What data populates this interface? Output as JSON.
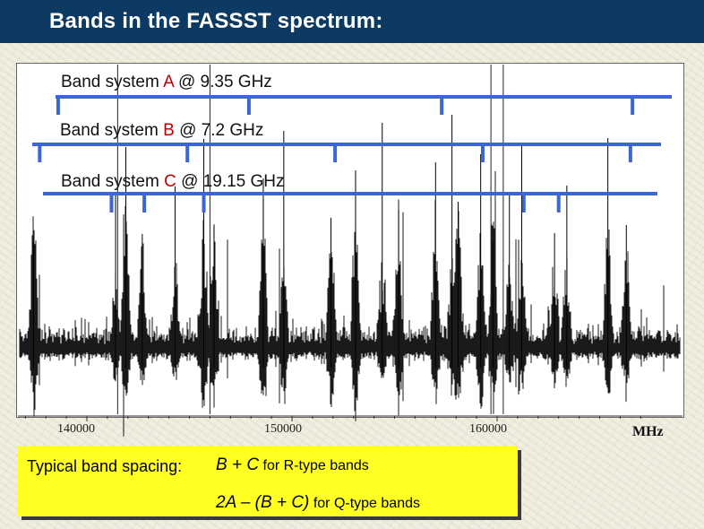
{
  "header": {
    "title": "Bands in the FASSST spectrum:"
  },
  "band_systems": [
    {
      "prefix": "Band system ",
      "letter": "A",
      "suffix": " @ 9.35 GHz"
    },
    {
      "prefix": "Band system ",
      "letter": "B",
      "suffix": " @ 7.2 GHz"
    },
    {
      "prefix": "Band system ",
      "letter": "C",
      "suffix": " @ 19.15 GHz"
    }
  ],
  "colors": {
    "band_line": "#3a66d6",
    "band_letter": "#c00000",
    "title_bar": "#0d3a62",
    "note_box": "#ffff22"
  },
  "chart_data": {
    "type": "line",
    "title": "",
    "xlabel": "MHz",
    "ylabel": "",
    "xlim": [
      135500,
      167500
    ],
    "x_ticks": [
      140000,
      150000,
      160000
    ],
    "x_tick_labels": [
      "140000",
      "150000",
      "160000"
    ],
    "grid": false,
    "series": [
      {
        "values_description_free": true,
        "noise_floor": 1.0
      }
    ],
    "strong_lines_mhz": [
      137400,
      141400,
      141900,
      142700,
      144300,
      145700,
      146200,
      148600,
      149600,
      151900,
      153100,
      154400,
      155200,
      157000,
      157800,
      158100,
      159200,
      159800,
      160600,
      161200,
      162800,
      163400,
      165400,
      166300
    ],
    "vertical_markers_mhz": [
      141500,
      146000,
      159700,
      160300
    ],
    "band_markers": [
      {
        "system": "A",
        "frequencies_mhz": [
          138600,
          147900,
          157300,
          166600
        ]
      },
      {
        "system": "B",
        "frequencies_mhz": [
          137700,
          144900,
          152100,
          159300,
          166500
        ]
      },
      {
        "system": "C",
        "frequencies_mhz": [
          141200,
          142800,
          145700,
          161300,
          163000
        ]
      }
    ]
  },
  "note": {
    "intro": "Typical band spacing:",
    "line1": {
      "expr": "B + C",
      "text": " for R-type bands"
    },
    "line2": {
      "expr": "2A – (B + C)",
      "text": " for Q-type bands"
    }
  }
}
